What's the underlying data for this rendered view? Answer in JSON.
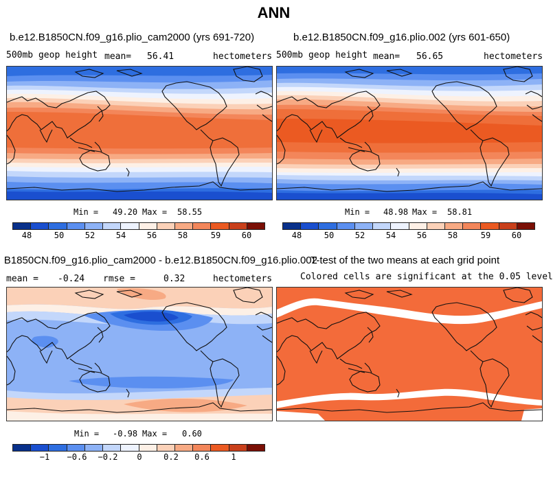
{
  "title": "ANN",
  "colors": {
    "blue_dark": "#08308a",
    "blue1": "#1a4fcf",
    "blue2": "#2e6ee0",
    "blue3": "#5b8ff0",
    "blue4": "#8db2f6",
    "blue5": "#c3d7fb",
    "pale": "#eef3fe",
    "cream": "#fdf0e6",
    "peach1": "#fbd1b8",
    "peach2": "#f7aa84",
    "orange1": "#f3865a",
    "orange2": "#ef6f3a",
    "orange3": "#eb5a22",
    "red1": "#c9401b",
    "red2": "#a12a13",
    "red3": "#7a0f05",
    "sig": "#f36b3a"
  },
  "panel1": {
    "title": "b.e12.B1850CN.f09_g16.plio_cam2000 (yrs 691-720)",
    "variable": "500mb geop height",
    "mean_label": "mean=",
    "mean": "56.41",
    "units": "hectometers",
    "min_label": "Min =",
    "min": "49.20",
    "max_label": "Max =",
    "max": "58.55"
  },
  "panel2": {
    "title": "b.e12.B1850CN.f09_g16.plio.002 (yrs 601-650)",
    "variable": "500mb geop height",
    "mean_label": "mean=",
    "mean": "56.65",
    "units": "hectometers",
    "min_label": "Min =",
    "min": "48.98",
    "max_label": "Max =",
    "max": "58.81"
  },
  "panel3": {
    "title": "B1850CN.f09_g16.plio_cam2000 - b.e12.B1850CN.f09_g16.plio.002",
    "mean_label": "mean =",
    "mean": "-0.24",
    "rmse_label": "rmse =",
    "rmse": "0.32",
    "units": "hectometers",
    "min_label": "Min =",
    "min": "-0.98",
    "max_label": "Max =",
    "max": "0.60"
  },
  "panel4": {
    "title": "T-test of the two means at each grid point",
    "subtitle": "Colored cells are significant at the 0.05 level"
  },
  "colorbar_abs": {
    "ticks": [
      "48",
      "50",
      "52",
      "54",
      "56",
      "58",
      "59",
      "60"
    ]
  },
  "colorbar_diff": {
    "ticks": [
      "-1",
      "-0.6",
      "-0.2",
      "0",
      "0.2",
      "0.6",
      "1"
    ]
  }
}
